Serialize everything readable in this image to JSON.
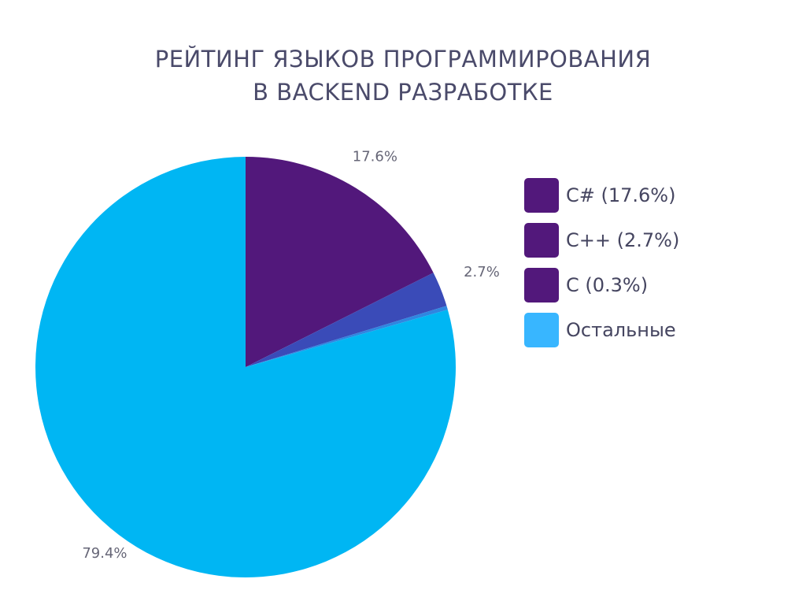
{
  "chart_data": {
    "type": "pie",
    "title": [
      "РЕЙТИНГ ЯЗЫКОВ ПРОГРАММИРОВАНИЯ",
      "В BACKEND РАЗРАБОТКЕ"
    ],
    "slices": [
      {
        "label": "C# (17.6%)",
        "value": 17.6,
        "data_label": "17.6%",
        "color": "#52187b"
      },
      {
        "label": "C++ (2.7%)",
        "value": 2.7,
        "data_label": "2.7%",
        "color": "#3a4bb8"
      },
      {
        "label": "C (0.3%)",
        "value": 0.3,
        "data_label": "",
        "color": "#2f86e0"
      },
      {
        "label": "Остальные",
        "value": 79.4,
        "data_label": "79.4%",
        "color": "#00b6f3"
      }
    ],
    "legend_swatch_colors": [
      "#52187b",
      "#52187b",
      "#52187b",
      "#38b6ff"
    ],
    "legend_position": "right",
    "start_angle": "top",
    "direction": "clockwise",
    "data_label_color": "#666677"
  }
}
